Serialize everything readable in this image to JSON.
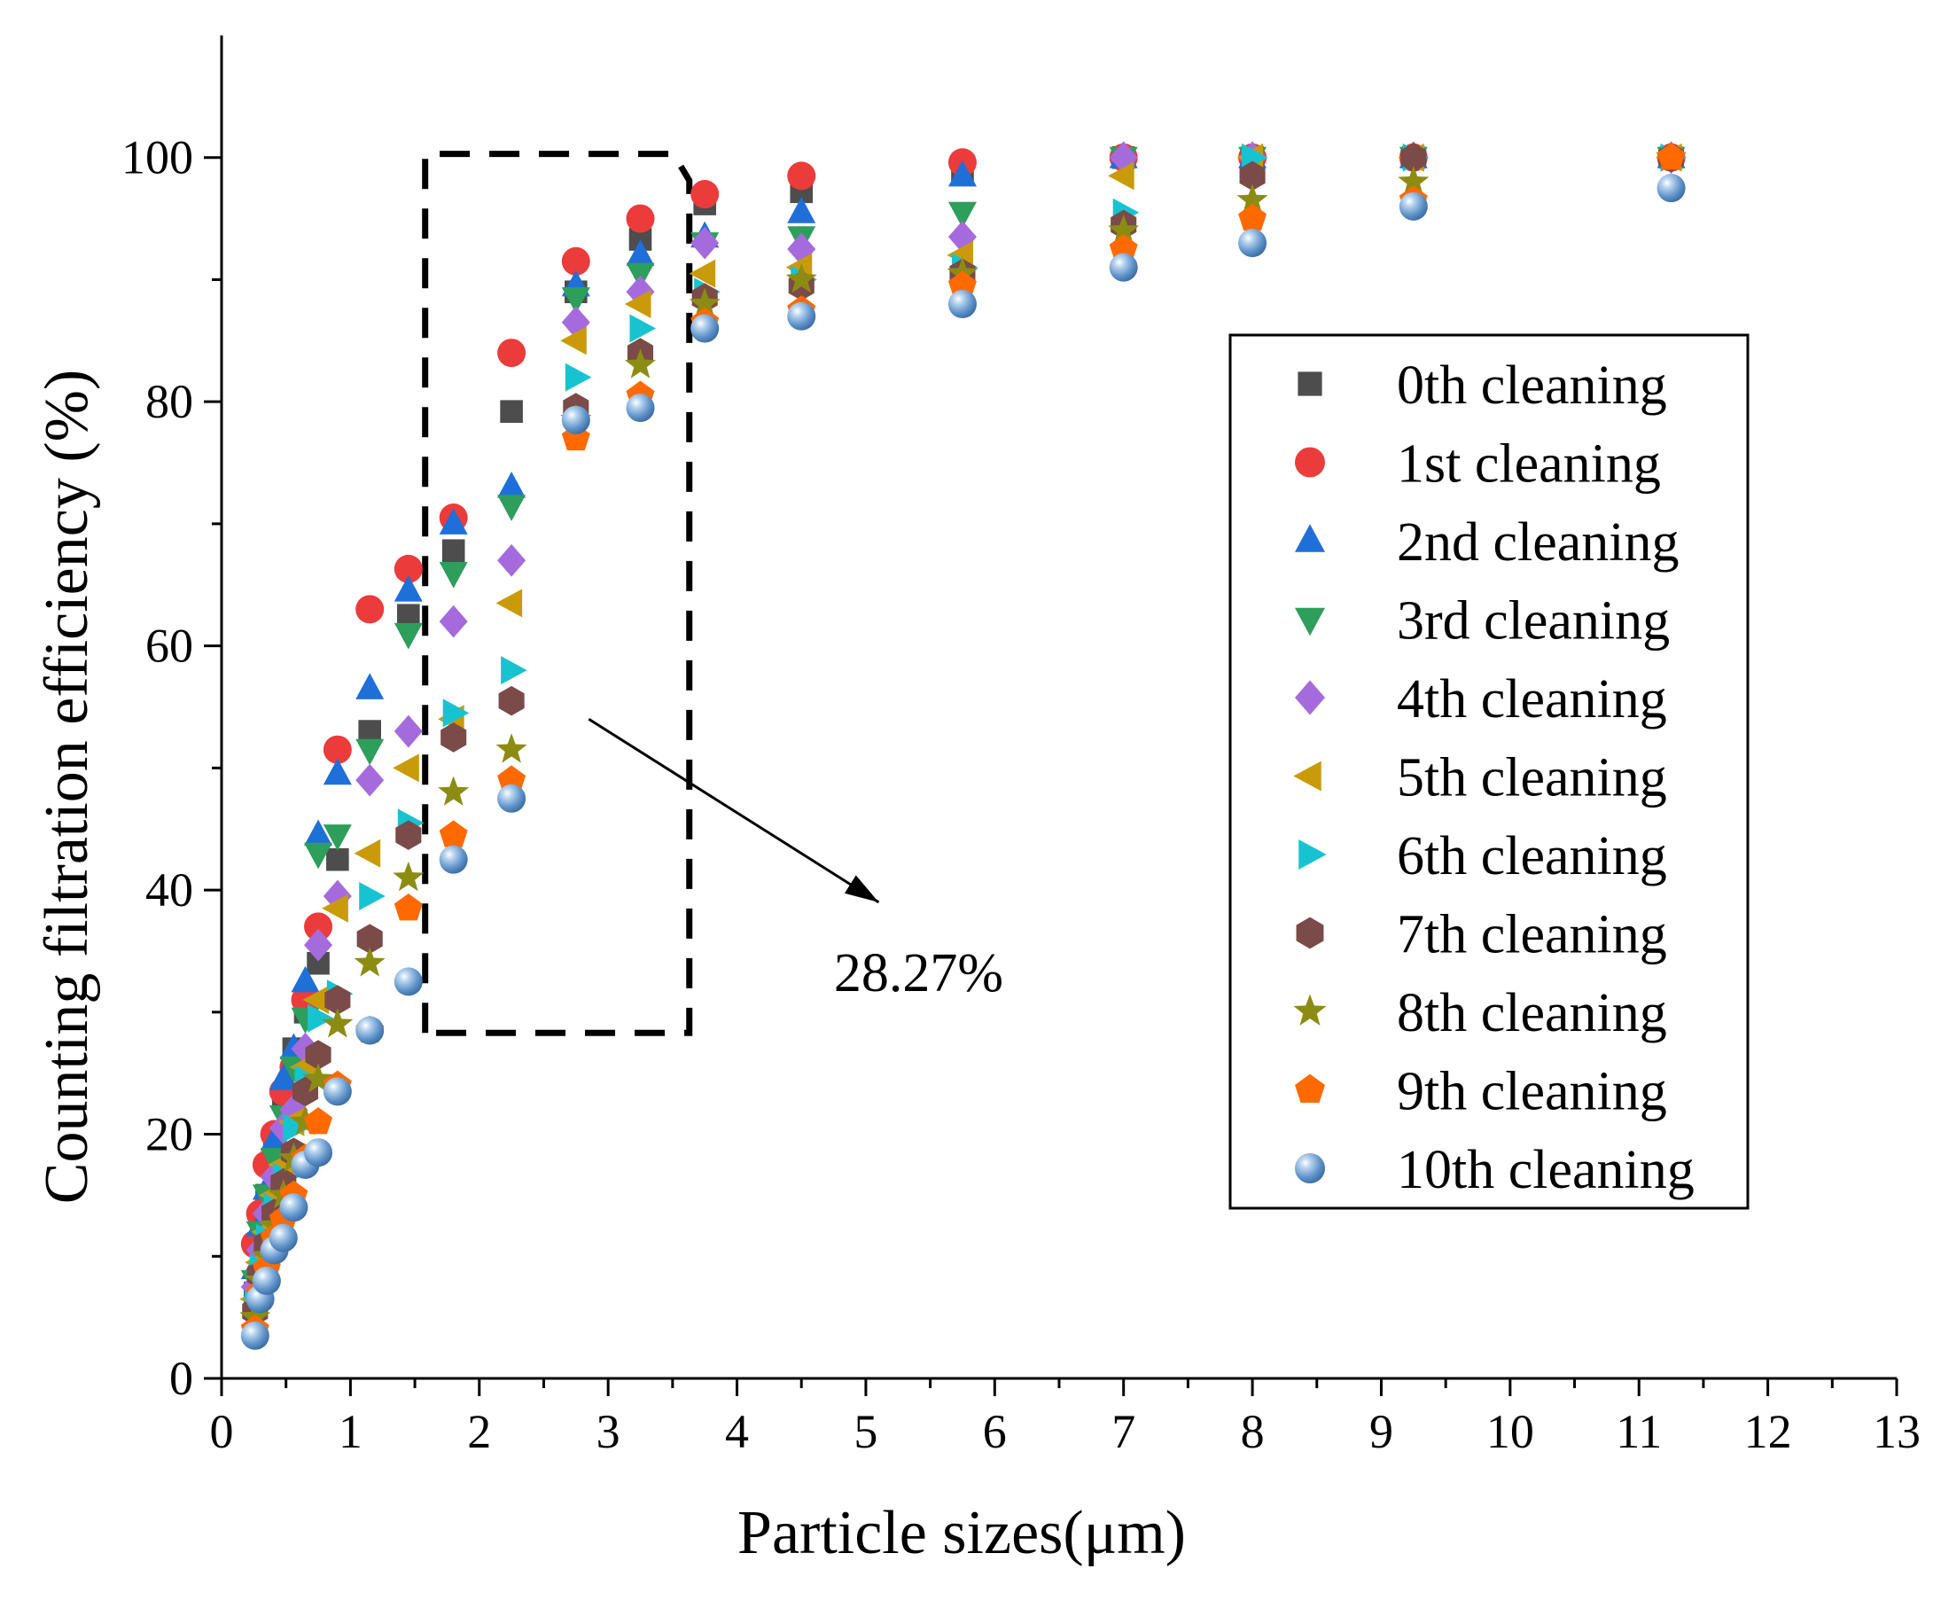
{
  "chart_data": {
    "type": "scatter",
    "title": "",
    "xlabel": "Particle sizes(μm)",
    "ylabel": "Counting filtration efficiency (%)",
    "xlim": [
      0,
      13
    ],
    "ylim": [
      0,
      110
    ],
    "x_ticks": [
      0,
      1,
      2,
      3,
      4,
      5,
      6,
      7,
      8,
      9,
      10,
      11,
      12,
      13
    ],
    "y_ticks": [
      0,
      20,
      40,
      60,
      80,
      100
    ],
    "grid": false,
    "legend_position": "right",
    "annotation": {
      "label": "28.27%",
      "box_x": [
        1.58,
        3.63
      ],
      "box_y": [
        28.3,
        100.3
      ],
      "arrow_from": [
        2.85,
        54
      ],
      "arrow_to": [
        5.1,
        39
      ]
    },
    "x": [
      0.26,
      0.3,
      0.35,
      0.41,
      0.48,
      0.56,
      0.65,
      0.75,
      0.9,
      1.15,
      1.45,
      1.8,
      2.25,
      2.75,
      3.25,
      3.75,
      4.5,
      5.75,
      7.0,
      8.0,
      9.25,
      11.25
    ],
    "series": [
      {
        "name": "0th cleaning",
        "marker": "square",
        "color": "#4d4d4d",
        "values": [
          7.0,
          11.0,
          15.0,
          19.0,
          23.0,
          27.0,
          30.0,
          34.0,
          42.5,
          53.0,
          62.5,
          67.8,
          79.2,
          89.0,
          93.3,
          96.2,
          97.2,
          99.0,
          100.0,
          100.0,
          100.0,
          100.0
        ]
      },
      {
        "name": "1st cleaning",
        "marker": "circle",
        "color": "#ec3b3b",
        "values": [
          11.0,
          13.5,
          17.5,
          20.0,
          23.5,
          25.5,
          31.0,
          37.0,
          51.5,
          63.0,
          66.3,
          70.5,
          84.0,
          91.5,
          95.0,
          97.0,
          98.5,
          99.6,
          100.0,
          100.0,
          100.0,
          100.0
        ]
      },
      {
        "name": "2nd cleaning",
        "marker": "triangle-up",
        "color": "#1f6fd9",
        "values": [
          9.0,
          12.5,
          15.5,
          19.5,
          24.5,
          27.0,
          32.5,
          44.5,
          49.5,
          56.5,
          64.5,
          70.0,
          73.0,
          89.5,
          92.0,
          93.5,
          95.5,
          98.5,
          100.0,
          100.0,
          100.0,
          100.0
        ]
      },
      {
        "name": "3rd cleaning",
        "marker": "triangle-down",
        "color": "#2e9e5b",
        "values": [
          8.0,
          12.0,
          15.0,
          18.0,
          21.5,
          25.5,
          29.5,
          43.0,
          44.5,
          51.5,
          61.0,
          66.0,
          71.5,
          88.5,
          90.5,
          93.0,
          93.5,
          95.5,
          100.0,
          100.0,
          100.0,
          100.0
        ]
      },
      {
        "name": "4th cleaning",
        "marker": "diamond",
        "color": "#a56bdd",
        "values": [
          7.5,
          10.5,
          13.5,
          16.5,
          20.5,
          22.0,
          27.0,
          35.5,
          39.5,
          49.0,
          53.0,
          62.0,
          67.0,
          86.5,
          89.0,
          93.0,
          92.5,
          93.5,
          100.0,
          100.0,
          100.0,
          100.0
        ]
      },
      {
        "name": "5th cleaning",
        "marker": "triangle-left",
        "color": "#c99b0a",
        "values": [
          6.5,
          9.5,
          12.0,
          15.0,
          17.5,
          21.0,
          25.5,
          31.0,
          38.5,
          43.0,
          50.0,
          54.0,
          63.5,
          85.0,
          88.0,
          90.5,
          91.0,
          92.0,
          98.5,
          100.0,
          100.0,
          100.0
        ]
      },
      {
        "name": "6th cleaning",
        "marker": "triangle-right",
        "color": "#18c3d1",
        "values": [
          6.0,
          9.0,
          11.5,
          14.0,
          16.5,
          20.5,
          24.5,
          29.5,
          31.5,
          39.5,
          45.5,
          54.5,
          58.0,
          82.0,
          86.0,
          89.0,
          90.0,
          91.0,
          95.5,
          100.0,
          100.0,
          100.0
        ]
      },
      {
        "name": "7th cleaning",
        "marker": "hexagon",
        "color": "#7a4b48",
        "values": [
          5.5,
          8.5,
          11.0,
          13.5,
          16.0,
          18.5,
          23.5,
          26.5,
          31.0,
          36.0,
          44.5,
          52.5,
          55.5,
          79.5,
          84.0,
          88.5,
          89.5,
          90.5,
          94.5,
          98.5,
          100.0,
          100.0
        ]
      },
      {
        "name": "8th cleaning",
        "marker": "star",
        "color": "#8c8c13",
        "values": [
          5.0,
          8.0,
          10.0,
          12.5,
          15.0,
          18.0,
          21.0,
          24.5,
          29.0,
          34.0,
          41.0,
          48.0,
          51.5,
          78.5,
          83.0,
          88.0,
          90.0,
          90.5,
          94.0,
          96.5,
          98.0,
          100.0
        ]
      },
      {
        "name": "9th cleaning",
        "marker": "pentagon",
        "color": "#ff6a00",
        "values": [
          4.0,
          7.0,
          9.0,
          11.5,
          13.0,
          15.0,
          18.0,
          21.0,
          24.0,
          28.5,
          38.5,
          44.5,
          49.0,
          77.0,
          80.5,
          86.5,
          87.5,
          89.5,
          92.5,
          95.0,
          96.5,
          100.0
        ]
      },
      {
        "name": "10th cleaning",
        "marker": "sphere",
        "color": "#6d9fd3",
        "values": [
          3.5,
          6.5,
          8.0,
          10.5,
          11.5,
          14.0,
          17.5,
          18.5,
          23.5,
          28.5,
          32.5,
          42.5,
          47.5,
          78.5,
          79.5,
          86.0,
          87.0,
          88.0,
          91.0,
          93.0,
          96.0,
          97.5
        ]
      }
    ]
  }
}
